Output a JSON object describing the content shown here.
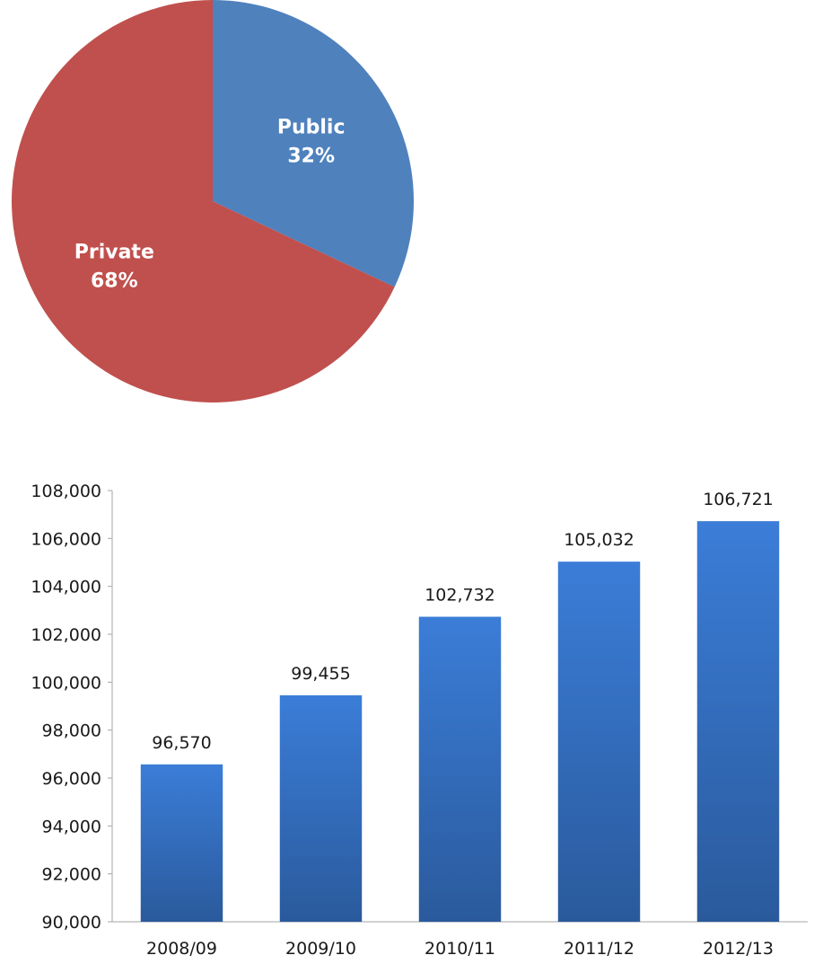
{
  "chart_data": [
    {
      "type": "pie",
      "slices": [
        {
          "label": "Public",
          "value": 32,
          "display": "32%",
          "color": "#4f81bd"
        },
        {
          "label": "Private",
          "value": 68,
          "display": "68%",
          "color": "#c0504d"
        }
      ],
      "start": "12 o'clock",
      "direction": "clockwise"
    },
    {
      "type": "bar",
      "categories": [
        "2008/09",
        "2009/10",
        "2010/11",
        "2011/12",
        "2012/13"
      ],
      "values": [
        96570,
        99455,
        102732,
        105032,
        106721
      ],
      "value_labels": [
        "96,570",
        "99,455",
        "102,732",
        "105,032",
        "106,721"
      ],
      "ylim": [
        90000,
        108000
      ],
      "y_ticks": [
        90000,
        92000,
        94000,
        96000,
        98000,
        100000,
        102000,
        104000,
        106000,
        108000
      ],
      "y_tick_labels": [
        "90,000",
        "92,000",
        "94,000",
        "96,000",
        "98,000",
        "100,000",
        "102,000",
        "104,000",
        "106,000",
        "108,000"
      ],
      "grid": false,
      "bar_color_top": "#3b7dd8",
      "bar_color_bottom": "#2a5a9c"
    }
  ]
}
